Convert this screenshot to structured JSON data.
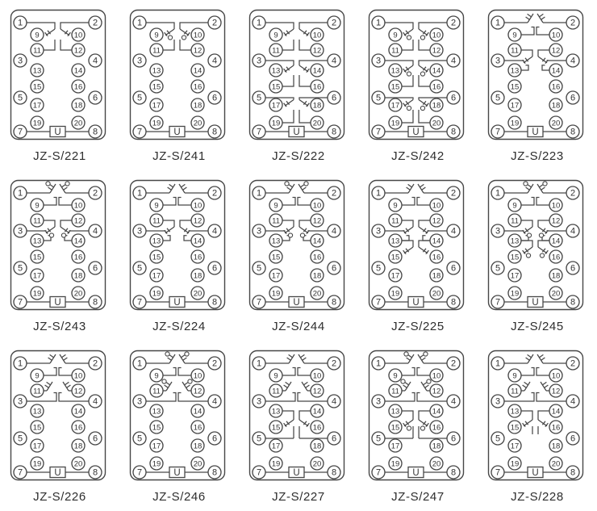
{
  "page": {
    "background_color": "#ffffff",
    "line_color": "#474747",
    "label_color": "#2e2e2e"
  },
  "terminals": {
    "outer_left": [
      "1",
      "3",
      "5",
      "7"
    ],
    "inner_left": [
      "9",
      "11",
      "13",
      "15",
      "17",
      "19"
    ],
    "inner_right": [
      "10",
      "12",
      "14",
      "16",
      "18",
      "20"
    ],
    "outer_right": [
      "2",
      "4",
      "6",
      "8"
    ],
    "supply_label": "U"
  },
  "diagrams": [
    {
      "label": "JZ-S/221",
      "style": "A",
      "groups": [
        "co_top"
      ]
    },
    {
      "label": "JZ-S/241",
      "style": "B",
      "groups": [
        "co_top"
      ]
    },
    {
      "label": "JZ-S/222",
      "style": "A",
      "groups": [
        "co_top",
        "co_mid",
        "co_bot"
      ]
    },
    {
      "label": "JZ-S/242",
      "style": "B",
      "groups": [
        "co_top",
        "co_mid",
        "co_bot"
      ]
    },
    {
      "label": "JZ-S/223",
      "style": "A",
      "groups": [
        "simple_top",
        "co_row2"
      ]
    },
    {
      "label": "JZ-S/243",
      "style": "B",
      "groups": [
        "simple_top",
        "co_row2"
      ]
    },
    {
      "label": "JZ-S/224",
      "style": "A",
      "groups": [
        "simple_top",
        "co_row2"
      ]
    },
    {
      "label": "JZ-S/244",
      "style": "B",
      "groups": [
        "simple_top",
        "co_row2"
      ]
    },
    {
      "label": "JZ-S/225",
      "style": "A",
      "groups": [
        "simple_top",
        "co_row2",
        "co_row3"
      ]
    },
    {
      "label": "JZ-S/245",
      "style": "B",
      "groups": [
        "simple_top",
        "co_row2",
        "co_row3"
      ]
    },
    {
      "label": "JZ-S/226",
      "style": "A",
      "groups": [
        "simple_top",
        "simple_row2"
      ]
    },
    {
      "label": "JZ-S/246",
      "style": "B",
      "groups": [
        "simple_top",
        "simple_row2"
      ]
    },
    {
      "label": "JZ-S/227",
      "style": "A",
      "groups": [
        "simple_top",
        "simple_row2",
        "co_row4"
      ]
    },
    {
      "label": "JZ-S/247",
      "style": "B",
      "groups": [
        "simple_top",
        "simple_row2",
        "co_row4"
      ]
    },
    {
      "label": "JZ-S/228",
      "style": "A",
      "groups": [
        "simple_top",
        "simple_row2",
        "co_row4_open"
      ]
    }
  ]
}
